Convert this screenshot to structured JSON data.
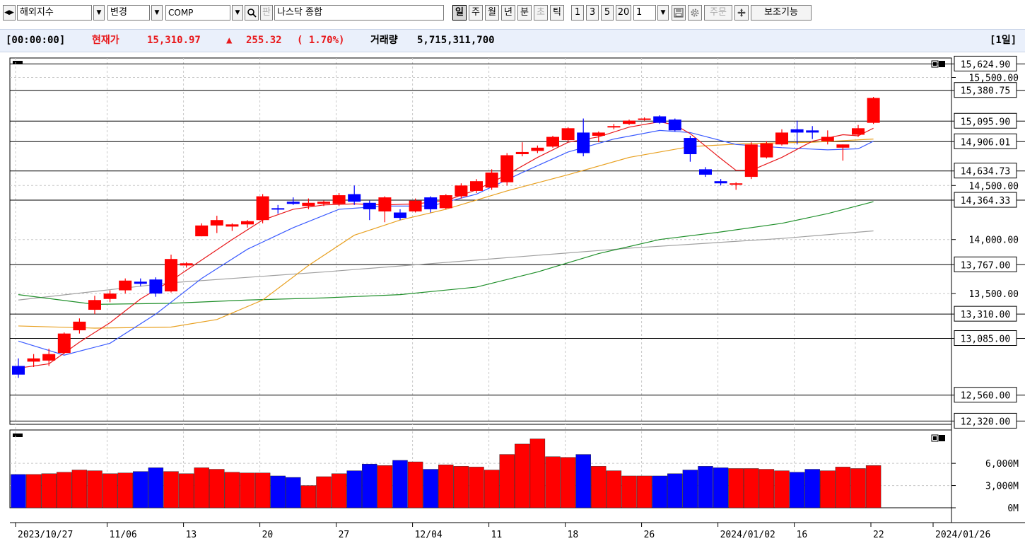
{
  "toolbar": {
    "market_value": "해외지수",
    "change_label": "변경",
    "symbol_value": "COMP",
    "pan_label": "판",
    "symbol_name": "나스닥 종합",
    "period_buttons": [
      "일",
      "주",
      "월",
      "년",
      "분",
      "초",
      "틱"
    ],
    "interval_buttons": [
      "1",
      "3",
      "5",
      "20"
    ],
    "count_value": "1",
    "order_label": "주문",
    "aux_label": "보조기능"
  },
  "info": {
    "time": "[00:00:00]",
    "price_label": "현재가",
    "price": "15,310.97",
    "arrow": "▲",
    "change": "255.32",
    "percent": "( 1.70%)",
    "volume_label": "거래량",
    "volume": "5,715,311,700",
    "period_badge": "[1일]"
  },
  "colors": {
    "up": "#ff0000",
    "down": "#0000ff",
    "ma5": "#e8171a",
    "ma10": "#3b5bff",
    "ma20": "#e8a020",
    "ma60": "#1f8f2a",
    "ma120": "#a0a0a0",
    "info_bg": "#eaf0fb"
  },
  "chart_data": {
    "type": "candlestick",
    "price_levels": [
      "15,624.90",
      "15,380.75",
      "15,095.90",
      "14,906.01",
      "14,634.73",
      "14,364.33",
      "13,767.00",
      "13,310.00",
      "13,085.00",
      "12,560.00",
      "12,320.00"
    ],
    "y_tick_labels": [
      "15,500.00",
      "14,500.00",
      "14,000.00",
      "13,500.00"
    ],
    "volume_tick_labels": [
      "6,000M",
      "3,000M",
      "0M"
    ],
    "x_tick_labels": [
      "2023/10/27",
      "11/06",
      "13",
      "20",
      "27",
      "12/04",
      "11",
      "18",
      "26",
      "2024/01/02",
      "16",
      "22",
      "2024/01/26"
    ],
    "candles": [
      {
        "o": 12830,
        "h": 12900,
        "l": 12720,
        "c": 12750
      },
      {
        "o": 12870,
        "h": 12940,
        "l": 12820,
        "c": 12900
      },
      {
        "o": 12880,
        "h": 12990,
        "l": 12830,
        "c": 12940
      },
      {
        "o": 12950,
        "h": 13140,
        "l": 12940,
        "c": 13130
      },
      {
        "o": 13160,
        "h": 13270,
        "l": 13130,
        "c": 13240
      },
      {
        "o": 13350,
        "h": 13480,
        "l": 13310,
        "c": 13440
      },
      {
        "o": 13450,
        "h": 13530,
        "l": 13420,
        "c": 13500
      },
      {
        "o": 13530,
        "h": 13640,
        "l": 13500,
        "c": 13620
      },
      {
        "o": 13610,
        "h": 13640,
        "l": 13570,
        "c": 13590
      },
      {
        "o": 13630,
        "h": 13650,
        "l": 13470,
        "c": 13500
      },
      {
        "o": 13520,
        "h": 13860,
        "l": 13510,
        "c": 13820
      },
      {
        "o": 13760,
        "h": 13790,
        "l": 13740,
        "c": 13780
      },
      {
        "o": 14030,
        "h": 14150,
        "l": 14030,
        "c": 14130
      },
      {
        "o": 14130,
        "h": 14220,
        "l": 14060,
        "c": 14180
      },
      {
        "o": 14120,
        "h": 14150,
        "l": 14080,
        "c": 14140
      },
      {
        "o": 14140,
        "h": 14180,
        "l": 14110,
        "c": 14170
      },
      {
        "o": 14180,
        "h": 14420,
        "l": 14150,
        "c": 14400
      },
      {
        "o": 14290,
        "h": 14320,
        "l": 14240,
        "c": 14280
      },
      {
        "o": 14350,
        "h": 14390,
        "l": 14320,
        "c": 14330
      },
      {
        "o": 14310,
        "h": 14380,
        "l": 14280,
        "c": 14340
      },
      {
        "o": 14330,
        "h": 14360,
        "l": 14310,
        "c": 14350
      },
      {
        "o": 14330,
        "h": 14430,
        "l": 14310,
        "c": 14410
      },
      {
        "o": 14420,
        "h": 14500,
        "l": 14320,
        "c": 14350
      },
      {
        "o": 14340,
        "h": 14360,
        "l": 14180,
        "c": 14280
      },
      {
        "o": 14260,
        "h": 14400,
        "l": 14160,
        "c": 14390
      },
      {
        "o": 14250,
        "h": 14280,
        "l": 14180,
        "c": 14200
      },
      {
        "o": 14260,
        "h": 14380,
        "l": 14250,
        "c": 14360
      },
      {
        "o": 14390,
        "h": 14400,
        "l": 14250,
        "c": 14280
      },
      {
        "o": 14290,
        "h": 14420,
        "l": 14280,
        "c": 14410
      },
      {
        "o": 14400,
        "h": 14520,
        "l": 14380,
        "c": 14500
      },
      {
        "o": 14450,
        "h": 14560,
        "l": 14430,
        "c": 14540
      },
      {
        "o": 14480,
        "h": 14650,
        "l": 14460,
        "c": 14620
      },
      {
        "o": 14530,
        "h": 14800,
        "l": 14500,
        "c": 14780
      },
      {
        "o": 14790,
        "h": 14900,
        "l": 14770,
        "c": 14810
      },
      {
        "o": 14820,
        "h": 14870,
        "l": 14800,
        "c": 14850
      },
      {
        "o": 14860,
        "h": 14960,
        "l": 14850,
        "c": 14950
      },
      {
        "o": 14920,
        "h": 15040,
        "l": 14910,
        "c": 15030
      },
      {
        "o": 14990,
        "h": 15120,
        "l": 14770,
        "c": 14800
      },
      {
        "o": 14960,
        "h": 15000,
        "l": 14900,
        "c": 14990
      },
      {
        "o": 15040,
        "h": 15070,
        "l": 15020,
        "c": 15050
      },
      {
        "o": 15070,
        "h": 15110,
        "l": 15060,
        "c": 15100
      },
      {
        "o": 15110,
        "h": 15130,
        "l": 15100,
        "c": 15120
      },
      {
        "o": 15140,
        "h": 15150,
        "l": 15070,
        "c": 15080
      },
      {
        "o": 15110,
        "h": 15120,
        "l": 15000,
        "c": 15010
      },
      {
        "o": 14940,
        "h": 14960,
        "l": 14720,
        "c": 14790
      },
      {
        "o": 14650,
        "h": 14670,
        "l": 14580,
        "c": 14600
      },
      {
        "o": 14540,
        "h": 14560,
        "l": 14500,
        "c": 14520
      },
      {
        "o": 14510,
        "h": 14530,
        "l": 14460,
        "c": 14520
      },
      {
        "o": 14580,
        "h": 14900,
        "l": 14560,
        "c": 14880
      },
      {
        "o": 14760,
        "h": 14910,
        "l": 14750,
        "c": 14890
      },
      {
        "o": 14880,
        "h": 15020,
        "l": 14870,
        "c": 14990
      },
      {
        "o": 15020,
        "h": 15100,
        "l": 14880,
        "c": 14990
      },
      {
        "o": 15010,
        "h": 15050,
        "l": 14930,
        "c": 14990
      },
      {
        "o": 14910,
        "h": 15010,
        "l": 14880,
        "c": 14950
      },
      {
        "o": 14850,
        "h": 14880,
        "l": 14730,
        "c": 14880
      },
      {
        "o": 14970,
        "h": 15060,
        "l": 14950,
        "c": 15030
      },
      {
        "o": 15080,
        "h": 15320,
        "l": 15070,
        "c": 15310
      }
    ],
    "volume": [
      4.5,
      4.5,
      4.6,
      4.8,
      5.1,
      5.0,
      4.6,
      4.7,
      4.9,
      5.4,
      4.9,
      4.6,
      5.4,
      5.2,
      4.8,
      4.7,
      4.7,
      4.3,
      4.1,
      3.0,
      4.2,
      4.6,
      5.0,
      5.9,
      5.7,
      6.4,
      6.2,
      5.2,
      5.8,
      5.6,
      5.5,
      5.1,
      7.2,
      8.6,
      9.3,
      6.9,
      6.8,
      7.2,
      5.6,
      5.0,
      4.3,
      4.3,
      4.3,
      4.6,
      5.1,
      5.6,
      5.4,
      5.3,
      5.3,
      5.2,
      5.0,
      4.8,
      5.2,
      5.0,
      5.5,
      5.3,
      5.7
    ],
    "volume_unit": "M",
    "ma": {
      "ma5": [
        [
          0,
          12810
        ],
        [
          2,
          12850
        ],
        [
          4,
          13050
        ],
        [
          6,
          13230
        ],
        [
          8,
          13450
        ],
        [
          10,
          13620
        ],
        [
          12,
          13810
        ],
        [
          14,
          14000
        ],
        [
          16,
          14180
        ],
        [
          18,
          14280
        ],
        [
          20,
          14320
        ],
        [
          22,
          14330
        ],
        [
          24,
          14320
        ],
        [
          26,
          14330
        ],
        [
          28,
          14360
        ],
        [
          30,
          14460
        ],
        [
          32,
          14600
        ],
        [
          34,
          14760
        ],
        [
          36,
          14900
        ],
        [
          38,
          14950
        ],
        [
          40,
          15040
        ],
        [
          42,
          15090
        ],
        [
          43,
          15060
        ],
        [
          44,
          14980
        ],
        [
          46,
          14750
        ],
        [
          47,
          14640
        ],
        [
          48,
          14640
        ],
        [
          50,
          14760
        ],
        [
          52,
          14910
        ],
        [
          54,
          14970
        ],
        [
          55,
          14960
        ],
        [
          56,
          15030
        ]
      ],
      "ma10": [
        [
          0,
          13060
        ],
        [
          3,
          12930
        ],
        [
          6,
          13040
        ],
        [
          9,
          13310
        ],
        [
          12,
          13640
        ],
        [
          15,
          13910
        ],
        [
          18,
          14110
        ],
        [
          21,
          14280
        ],
        [
          24,
          14310
        ],
        [
          27,
          14310
        ],
        [
          30,
          14420
        ],
        [
          33,
          14620
        ],
        [
          36,
          14810
        ],
        [
          39,
          14930
        ],
        [
          42,
          15010
        ],
        [
          44,
          14990
        ],
        [
          47,
          14880
        ],
        [
          50,
          14850
        ],
        [
          53,
          14830
        ],
        [
          55,
          14840
        ],
        [
          56,
          14910
        ]
      ],
      "ma20": [
        [
          0,
          13200
        ],
        [
          5,
          13180
        ],
        [
          10,
          13190
        ],
        [
          13,
          13260
        ],
        [
          16,
          13440
        ],
        [
          19,
          13760
        ],
        [
          22,
          14040
        ],
        [
          25,
          14180
        ],
        [
          28,
          14280
        ],
        [
          32,
          14450
        ],
        [
          36,
          14600
        ],
        [
          40,
          14760
        ],
        [
          44,
          14860
        ],
        [
          48,
          14890
        ],
        [
          52,
          14900
        ],
        [
          56,
          14930
        ]
      ],
      "ma60": [
        [
          0,
          13490
        ],
        [
          5,
          13400
        ],
        [
          10,
          13410
        ],
        [
          15,
          13440
        ],
        [
          20,
          13460
        ],
        [
          25,
          13490
        ],
        [
          30,
          13560
        ],
        [
          34,
          13700
        ],
        [
          38,
          13870
        ],
        [
          42,
          14000
        ],
        [
          46,
          14070
        ],
        [
          50,
          14150
        ],
        [
          53,
          14240
        ],
        [
          56,
          14350
        ]
      ],
      "ma120": [
        [
          0,
          13440
        ],
        [
          10,
          13600
        ],
        [
          20,
          13700
        ],
        [
          30,
          13810
        ],
        [
          40,
          13920
        ],
        [
          50,
          14010
        ],
        [
          56,
          14080
        ]
      ]
    }
  }
}
